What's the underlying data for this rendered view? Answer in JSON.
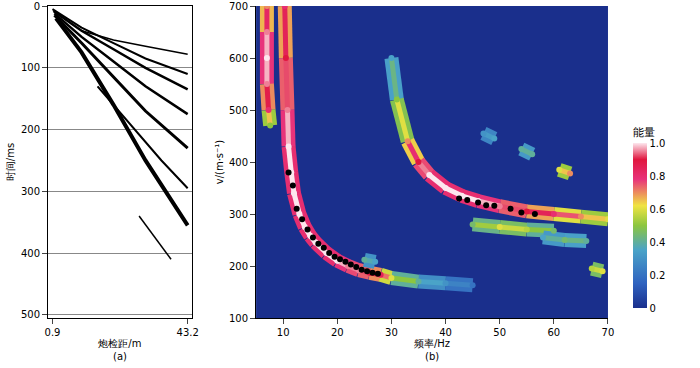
{
  "chart_data": [
    {
      "type": "line",
      "title": "(a)",
      "x_label": "炮检距/m",
      "y_label": "时间/ms",
      "xlim": [
        -0.5,
        44.5
      ],
      "xticks": [
        0.9,
        43.2
      ],
      "ylim": [
        505,
        0
      ],
      "yticks": [
        0,
        100,
        200,
        300,
        400,
        500
      ],
      "grid": true,
      "color": "#000000",
      "series": [
        {
          "x": [
            2,
            10,
            20,
            30,
            43.2
          ],
          "values": [
            20,
            75,
            160,
            250,
            355
          ]
        },
        {
          "x": [
            1.5,
            10,
            20,
            30,
            43.2
          ],
          "values": [
            15,
            60,
            115,
            170,
            230
          ]
        },
        {
          "x": [
            1.5,
            10,
            20,
            30,
            43.2
          ],
          "values": [
            12,
            50,
            90,
            130,
            175
          ]
        },
        {
          "x": [
            1.2,
            10,
            20,
            30,
            43.2
          ],
          "values": [
            8,
            40,
            70,
            100,
            135
          ]
        },
        {
          "x": [
            0.9,
            10,
            20,
            30,
            43.2
          ],
          "values": [
            5,
            35,
            60,
            85,
            110
          ]
        },
        {
          "x": [
            10,
            20,
            30,
            43.2
          ],
          "values": [
            40,
            55,
            65,
            78
          ]
        },
        {
          "x": [
            15,
            25,
            35,
            43.2
          ],
          "values": [
            130,
            190,
            250,
            295
          ]
        },
        {
          "x": [
            28,
            33,
            38
          ],
          "values": [
            340,
            375,
            410
          ]
        }
      ]
    },
    {
      "type": "scatter",
      "title": "(b)",
      "x_label": "频率/Hz",
      "y_label": "v/(m·s⁻¹)",
      "xlim": [
        5,
        70
      ],
      "xticks": [
        10,
        20,
        30,
        40,
        50,
        60,
        70
      ],
      "ylim": [
        100,
        700
      ],
      "yticks": [
        100,
        200,
        300,
        400,
        500,
        600,
        700
      ],
      "energy_label": "能量",
      "energy_range": [
        0,
        1
      ],
      "energy_ticks": [
        0,
        0.2,
        0.4,
        0.6,
        0.8,
        {
          "value": 1,
          "label": "1.0"
        }
      ],
      "ridges": [
        {
          "x": [
            7,
            7,
            7,
            7,
            7.3,
            7.6
          ],
          "values": [
            700,
            650,
            600,
            550,
            500,
            470
          ],
          "energy": [
            0.7,
            0.95,
            1,
            0.95,
            0.8,
            0.5
          ]
        },
        {
          "x": [
            10.3,
            10.5,
            10.8,
            11,
            11.5,
            12,
            13,
            14,
            15,
            16,
            18,
            20,
            22,
            24,
            26,
            28,
            30,
            35,
            40,
            45
          ],
          "values": [
            700,
            600,
            500,
            430,
            380,
            340,
            300,
            275,
            258,
            245,
            225,
            210,
            200,
            192,
            187,
            183,
            177,
            170,
            167,
            163
          ],
          "energy": [
            0.8,
            0.9,
            0.95,
            1,
            1,
            1,
            1,
            1,
            1,
            1,
            1,
            1,
            0.95,
            0.95,
            0.9,
            0.85,
            0.6,
            0.4,
            0.3,
            0.2
          ]
        },
        {
          "x": [
            30,
            31,
            33,
            35,
            37,
            40,
            43,
            46,
            50,
            55,
            60,
            65,
            70
          ],
          "values": [
            600,
            520,
            440,
            400,
            375,
            350,
            335,
            325,
            315,
            305,
            300,
            295,
            290
          ],
          "energy": [
            0.35,
            0.5,
            0.7,
            0.9,
            1,
            1,
            1,
            1,
            0.95,
            0.9,
            0.8,
            0.7,
            0.6
          ]
        },
        {
          "x": [
            45,
            50,
            55,
            60
          ],
          "values": [
            280,
            275,
            270,
            268
          ],
          "energy": [
            0.45,
            0.6,
            0.55,
            0.45
          ]
        },
        {
          "x": [
            47,
            49
          ],
          "values": [
            455,
            445
          ],
          "energy": [
            0.3,
            0.35
          ]
        },
        {
          "x": [
            54,
            56
          ],
          "values": [
            425,
            415
          ],
          "energy": [
            0.4,
            0.4
          ]
        },
        {
          "x": [
            61,
            63
          ],
          "values": [
            385,
            378
          ],
          "energy": [
            0.6,
            0.7
          ]
        },
        {
          "x": [
            58,
            62,
            66
          ],
          "values": [
            255,
            250,
            248
          ],
          "energy": [
            0.35,
            0.45,
            0.4
          ]
        },
        {
          "x": [
            67,
            69
          ],
          "values": [
            195,
            190
          ],
          "energy": [
            0.55,
            0.6
          ]
        },
        {
          "x": [
            25,
            27
          ],
          "values": [
            212,
            208
          ],
          "energy": [
            0.4,
            0.35
          ]
        }
      ],
      "picks": {
        "color": "#000000",
        "marker": "circle",
        "x": [
          11,
          11.8,
          12.5,
          13.5,
          14.5,
          15.5,
          16.5,
          17.5,
          18.5,
          19.5,
          20.5,
          21.5,
          22.5,
          23.5,
          24.5,
          25.5,
          26.5,
          27.5,
          42.5,
          44,
          46,
          47.5,
          49,
          52,
          54,
          56.5
        ],
        "values": [
          380,
          355,
          310,
          290,
          270,
          255,
          243,
          235,
          225,
          218,
          213,
          208,
          203,
          198,
          193,
          190,
          187,
          185,
          330,
          327,
          322,
          317,
          316,
          310,
          303,
          300
        ]
      }
    }
  ]
}
